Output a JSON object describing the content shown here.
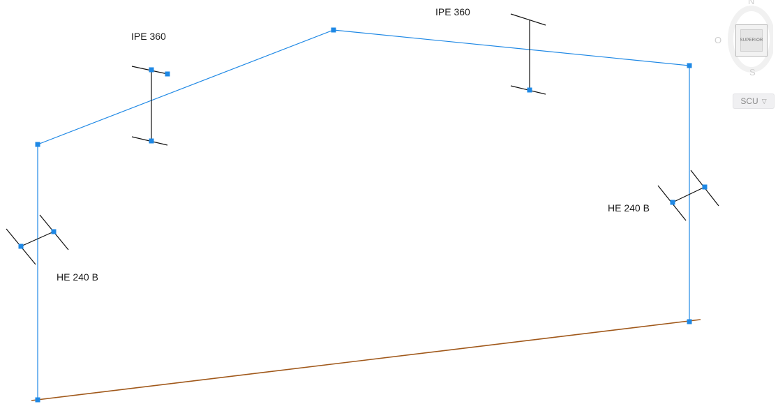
{
  "drawing": {
    "labels": {
      "rafter_left": "IPE 360",
      "rafter_right": "IPE 360",
      "column_left": "HE 240 B",
      "column_right": "HE 240 B"
    },
    "colors": {
      "frame": "#1e88e5",
      "grip": "#1e88e5",
      "ground": "#a0581a",
      "section": "#111111"
    }
  },
  "viewcube": {
    "face_label": "SUPERIOR",
    "north": "N",
    "south": "S",
    "west": "O",
    "wcs_label": "SCU",
    "wcs_arrow": "▽"
  }
}
